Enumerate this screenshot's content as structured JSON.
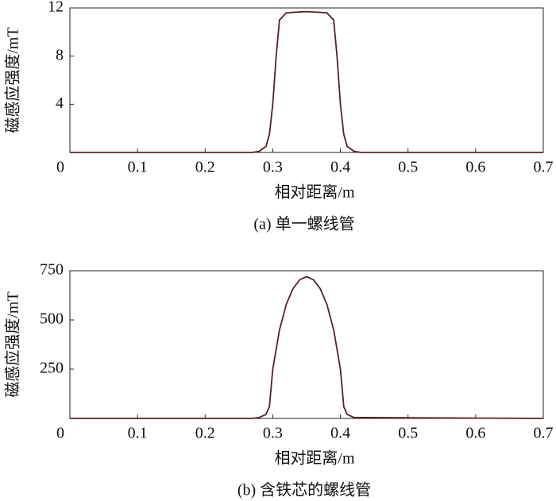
{
  "chart_data": [
    {
      "type": "line",
      "caption": "(a) 单一螺线管",
      "x_label": "相对距离/m",
      "y_label": "磁感应强度/mT",
      "x": [
        0,
        0.27,
        0.28,
        0.29,
        0.295,
        0.3,
        0.305,
        0.31,
        0.32,
        0.35,
        0.38,
        0.39,
        0.395,
        0.4,
        0.405,
        0.41,
        0.42,
        0.43,
        0.7
      ],
      "values": [
        0,
        0,
        0.1,
        0.5,
        1.5,
        4,
        8,
        11,
        11.6,
        11.7,
        11.6,
        11,
        8,
        4,
        1.5,
        0.5,
        0.1,
        0,
        0
      ],
      "color": "#5a2020",
      "xlim": [
        0,
        0.7
      ],
      "ylim": [
        0,
        12
      ],
      "xticks": [
        0,
        0.1,
        0.2,
        0.3,
        0.4,
        0.5,
        0.6,
        0.7
      ],
      "yticks": [
        4,
        8,
        12
      ]
    },
    {
      "type": "line",
      "caption": "(b) 含铁芯的螺线管",
      "x_label": "相对距离/m",
      "y_label": "磁感应强度/mT",
      "x": [
        0,
        0.27,
        0.28,
        0.29,
        0.295,
        0.3,
        0.31,
        0.32,
        0.33,
        0.34,
        0.35,
        0.36,
        0.37,
        0.38,
        0.39,
        0.4,
        0.405,
        0.41,
        0.42,
        0.7
      ],
      "values": [
        0,
        0,
        5,
        20,
        60,
        250,
        450,
        580,
        660,
        705,
        720,
        705,
        660,
        580,
        450,
        250,
        60,
        20,
        5,
        0
      ],
      "color": "#5a2020",
      "xlim": [
        0,
        0.7
      ],
      "ylim": [
        0,
        750
      ],
      "xticks": [
        0,
        0.1,
        0.2,
        0.3,
        0.4,
        0.5,
        0.6,
        0.7
      ],
      "yticks": [
        250,
        500,
        750
      ]
    }
  ]
}
